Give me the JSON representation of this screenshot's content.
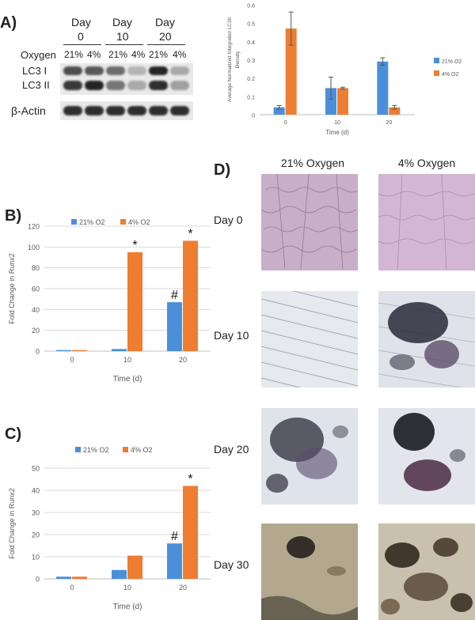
{
  "colors": {
    "series_21": "#4a90d9",
    "series_4": "#ee7d31",
    "band": "#1a1a1a"
  },
  "panel_a": {
    "letter": "A)",
    "day_word": "Day",
    "days": [
      "0",
      "10",
      "20"
    ],
    "oxygen_label": "Oxygen",
    "oxygen_levels": [
      "21%",
      "4%",
      "21%",
      "4%",
      "21%",
      "4%"
    ],
    "row_labels": [
      "LC3 I",
      "LC3 II"
    ],
    "actin_label": "β-Actin",
    "band_intensity": {
      "lc3_i": [
        0.75,
        0.7,
        0.6,
        0.25,
        0.95,
        0.3
      ],
      "lc3_ii": [
        0.85,
        0.95,
        0.55,
        0.3,
        0.9,
        0.35
      ],
      "actin": [
        0.9,
        0.9,
        0.9,
        0.9,
        0.9,
        0.9
      ]
    }
  },
  "panel_b": {
    "letter": "B)"
  },
  "panel_c": {
    "letter": "C)"
  },
  "panel_d": {
    "letter": "D)",
    "columns": [
      "21% Oxygen",
      "4% Oxygen"
    ],
    "rows": [
      "Day 0",
      "Day 10",
      "Day 20",
      "Day 30"
    ]
  },
  "chart_data": [
    {
      "id": "lc3",
      "type": "bar",
      "categories": [
        "0",
        "10",
        "20"
      ],
      "series": [
        {
          "name": "21% O2",
          "values": [
            0.04,
            0.145,
            0.29
          ],
          "errors": [
            0.01,
            0.06,
            0.02
          ]
        },
        {
          "name": "4% O2",
          "values": [
            0.47,
            0.145,
            0.04
          ],
          "errors": [
            0.09,
            0.005,
            0.01
          ]
        }
      ],
      "ylim": [
        0,
        0.6
      ],
      "yticks": [
        "0",
        "0.1",
        "0.2",
        "0.3",
        "0.4",
        "0.5",
        "0.6"
      ],
      "xlabel": "Time (d)",
      "ylabel": "Average Normalized Integrated LC3II Density",
      "legend": "right",
      "grid": false
    },
    {
      "id": "runx2_b",
      "type": "bar",
      "categories": [
        "0",
        "10",
        "20"
      ],
      "series": [
        {
          "name": "21% O2",
          "values": [
            1,
            2,
            47
          ]
        },
        {
          "name": "4% O2",
          "values": [
            1,
            95,
            106
          ]
        }
      ],
      "ylim": [
        0,
        120
      ],
      "yticks": [
        "0",
        "20",
        "40",
        "60",
        "80",
        "100",
        "120"
      ],
      "xlabel": "Time (d)",
      "ylabel": "Fold Change in Runx2",
      "legend": "top",
      "grid": true,
      "annotations": [
        {
          "category": 1,
          "series": 1,
          "text": "*"
        },
        {
          "category": 2,
          "series": 0,
          "text": "#"
        },
        {
          "category": 2,
          "series": 1,
          "text": "*"
        }
      ]
    },
    {
      "id": "runx2_c",
      "type": "bar",
      "categories": [
        "0",
        "10",
        "20"
      ],
      "series": [
        {
          "name": "21% O2",
          "values": [
            1,
            4,
            16
          ]
        },
        {
          "name": "4% O2",
          "values": [
            1,
            10.5,
            42
          ]
        }
      ],
      "ylim": [
        0,
        50
      ],
      "yticks": [
        "0",
        "10",
        "20",
        "30",
        "40",
        "50"
      ],
      "xlabel": "Time (d)",
      "ylabel": "Fold Change in Runx2",
      "legend": "top",
      "grid": true,
      "annotations": [
        {
          "category": 2,
          "series": 0,
          "text": "#"
        },
        {
          "category": 2,
          "series": 1,
          "text": "*"
        }
      ]
    }
  ]
}
